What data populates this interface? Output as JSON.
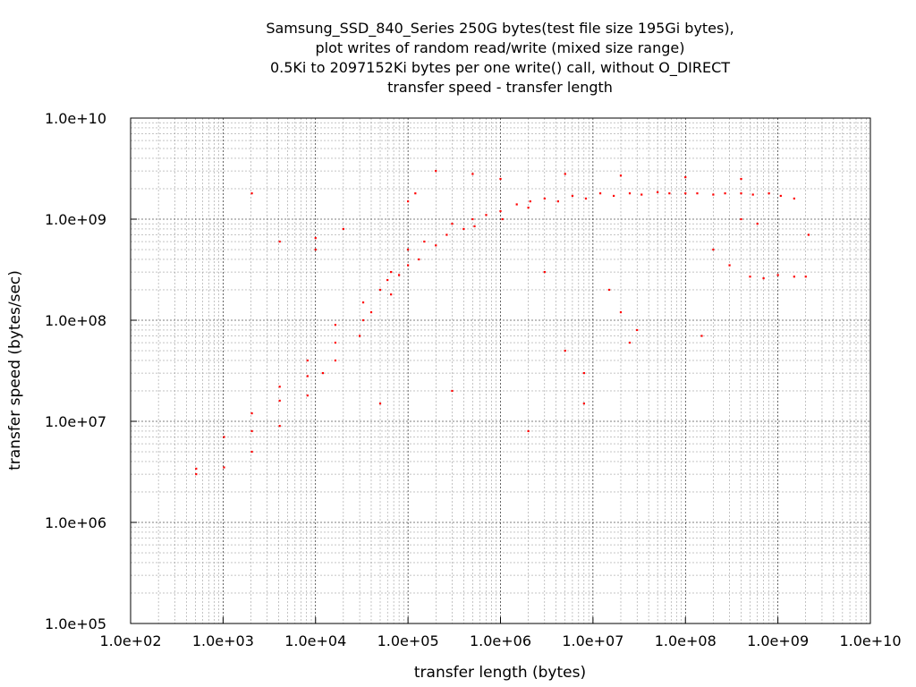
{
  "chart_data": {
    "type": "scatter",
    "title_lines": [
      "Samsung_SSD_840_Series 250G bytes(test file size 195Gi bytes),",
      "plot writes of random read/write (mixed size range)",
      "0.5Ki to 2097152Ki bytes per one write() call, without O_DIRECT",
      "transfer speed - transfer length"
    ],
    "xlabel": "transfer length (bytes)",
    "ylabel": "transfer speed (bytes/sec)",
    "x_scale": "log",
    "y_scale": "log",
    "xlim": [
      100,
      10000000000
    ],
    "ylim": [
      100000,
      10000000000
    ],
    "x_ticks": [
      "1.0e+02",
      "1.0e+03",
      "1.0e+04",
      "1.0e+05",
      "1.0e+06",
      "1.0e+07",
      "1.0e+08",
      "1.0e+09",
      "1.0e+10"
    ],
    "y_ticks": [
      "1.0e+10",
      "1.0e+09",
      "1.0e+08",
      "1.0e+07",
      "1.0e+06",
      "1.0e+05"
    ],
    "grid": true,
    "point_color": "#ff0000",
    "series": [
      {
        "points": [
          [
            512,
            3400000
          ],
          [
            512,
            3000000
          ],
          [
            1024,
            3500000
          ],
          [
            1024,
            7000000
          ],
          [
            2048,
            1800000000
          ],
          [
            2048,
            5000000
          ],
          [
            2048,
            8000000
          ],
          [
            2048,
            12000000
          ],
          [
            4096,
            9000000
          ],
          [
            4096,
            16000000
          ],
          [
            4096,
            22000000
          ],
          [
            4096,
            600000000
          ],
          [
            8192,
            18000000
          ],
          [
            8192,
            28000000
          ],
          [
            8192,
            40000000
          ],
          [
            10000,
            500000000
          ],
          [
            10000,
            650000000
          ],
          [
            12000,
            30000000
          ],
          [
            16384,
            40000000
          ],
          [
            16384,
            60000000
          ],
          [
            16384,
            90000000
          ],
          [
            20000,
            800000000
          ],
          [
            30000,
            70000000
          ],
          [
            32768,
            100000000
          ],
          [
            32768,
            150000000
          ],
          [
            40000,
            120000000
          ],
          [
            50000,
            200000000
          ],
          [
            60000,
            250000000
          ],
          [
            65536,
            180000000
          ],
          [
            65536,
            300000000
          ],
          [
            80000,
            280000000
          ],
          [
            100000,
            350000000
          ],
          [
            100000,
            500000000
          ],
          [
            100000,
            1500000000
          ],
          [
            120000,
            1800000000
          ],
          [
            131072,
            400000000
          ],
          [
            150000,
            600000000
          ],
          [
            200000,
            550000000
          ],
          [
            262144,
            700000000
          ],
          [
            300000,
            900000000
          ],
          [
            400000,
            800000000
          ],
          [
            500000,
            1000000000
          ],
          [
            524288,
            850000000
          ],
          [
            700000,
            1100000000
          ],
          [
            1000000,
            1200000000
          ],
          [
            1048576,
            1000000000
          ],
          [
            1500000,
            1400000000
          ],
          [
            2000000,
            1300000000
          ],
          [
            2097152,
            1500000000
          ],
          [
            3000000,
            1600000000
          ],
          [
            4194304,
            1500000000
          ],
          [
            6000000,
            1700000000
          ],
          [
            8388608,
            1600000000
          ],
          [
            12000000,
            1800000000
          ],
          [
            16777216,
            1700000000
          ],
          [
            25000000,
            1800000000
          ],
          [
            33554432,
            1750000000
          ],
          [
            50000000,
            1850000000
          ],
          [
            67108864,
            1800000000
          ],
          [
            100000000,
            1800000000
          ],
          [
            134217728,
            1800000000
          ],
          [
            200000000,
            1750000000
          ],
          [
            268435456,
            1800000000
          ],
          [
            400000000,
            1800000000
          ],
          [
            536870912,
            1750000000
          ],
          [
            800000000,
            1800000000
          ],
          [
            1073741824,
            1700000000
          ],
          [
            1500000000,
            1600000000
          ],
          [
            2147483648,
            700000000
          ],
          [
            500000000,
            270000000
          ],
          [
            700000000,
            260000000
          ],
          [
            1000000000,
            280000000
          ],
          [
            1500000000,
            270000000
          ],
          [
            2000000000,
            270000000
          ],
          [
            300000000,
            350000000
          ],
          [
            400000000,
            1000000000
          ],
          [
            600000000,
            900000000
          ],
          [
            200000000,
            500000000
          ],
          [
            20000000,
            120000000
          ],
          [
            30000000,
            80000000
          ],
          [
            25000000,
            60000000
          ],
          [
            15000000,
            200000000
          ],
          [
            3000000,
            300000000
          ],
          [
            5000000,
            50000000
          ],
          [
            8000000,
            30000000
          ],
          [
            50000,
            15000000
          ],
          [
            300000,
            20000000
          ],
          [
            2000000,
            8000000
          ],
          [
            8000000,
            15000000
          ],
          [
            150000000,
            70000000
          ],
          [
            200000,
            3000000000
          ],
          [
            500000,
            2800000000
          ],
          [
            1000000,
            2500000000
          ],
          [
            5000000,
            2800000000
          ],
          [
            20000000,
            2700000000
          ],
          [
            100000000,
            2600000000
          ],
          [
            400000000,
            2500000000
          ]
        ]
      }
    ]
  }
}
